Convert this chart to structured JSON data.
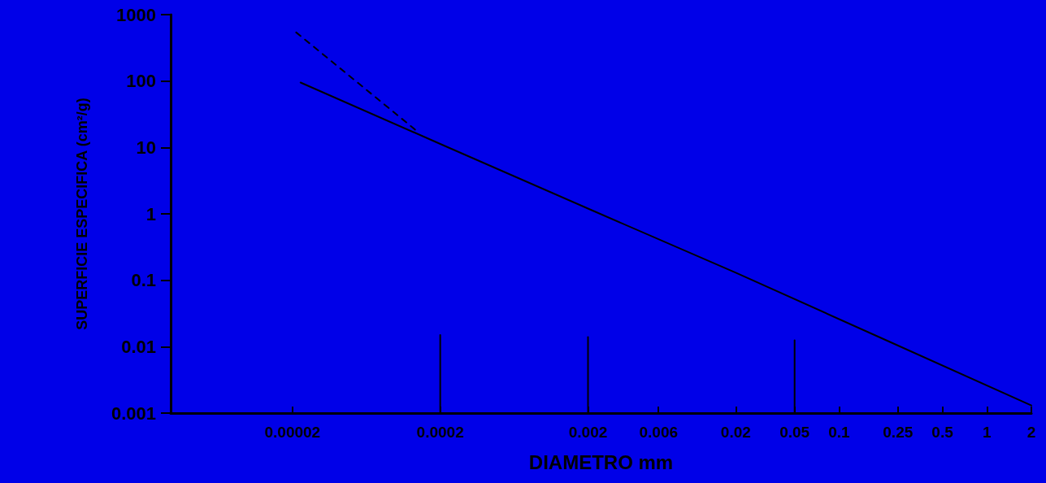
{
  "chart_data": {
    "type": "line",
    "xlabel": "DIAMETRO mm",
    "ylabel": "SUPERFICIE ESPECIFICA (cm²/g)",
    "log": "xy",
    "grid": false,
    "marker": "none",
    "xlim": [
      3e-06,
      2
    ],
    "ylim": [
      0.001,
      1000
    ],
    "xticks": [
      {
        "value": 2e-05,
        "label": "0.00002"
      },
      0.0002,
      0.002,
      0.006,
      0.02,
      0.05,
      0.1,
      0.25,
      0.5,
      1,
      2
    ],
    "yticks": [
      0.001,
      0.01,
      0.1,
      1,
      10,
      100,
      1000
    ],
    "series": [
      {
        "color": "#000000",
        "line_style": "solid",
        "x": [
          2.27e-05,
          0.0002,
          0.002,
          0.02,
          0.2,
          2
        ],
        "values": [
          95,
          11.3,
          1.2,
          0.13,
          0.013,
          0.0013
        ]
      },
      {
        "color": "#000000",
        "line_style": "dashed",
        "x": [
          2.12e-05,
          0.000142
        ],
        "values": [
          540,
          17
        ]
      },
      {
        "color": "#000000",
        "line_style": "solid",
        "x": [
          0.0002,
          0.0002
        ],
        "values": [
          0.001,
          0.015
        ]
      },
      {
        "color": "#000000",
        "line_style": "solid",
        "x": [
          0.002,
          0.002
        ],
        "values": [
          0.001,
          0.014
        ]
      },
      {
        "color": "#000000",
        "line_style": "solid",
        "x": [
          0.05,
          0.05
        ],
        "values": [
          0.001,
          0.0125
        ]
      }
    ]
  }
}
